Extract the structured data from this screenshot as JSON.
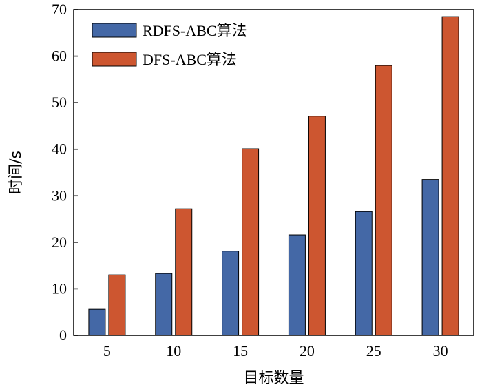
{
  "chart_data": {
    "type": "bar",
    "categories": [
      "5",
      "10",
      "15",
      "20",
      "25",
      "30"
    ],
    "series": [
      {
        "name": "RDFS-ABC算法",
        "color": "#4468a6",
        "values": [
          5.6,
          13.3,
          18.1,
          21.6,
          26.6,
          33.5
        ]
      },
      {
        "name": "DFS-ABC算法",
        "color": "#cd5630",
        "values": [
          13.0,
          27.2,
          40.1,
          47.1,
          58.0,
          68.5
        ]
      }
    ],
    "xlabel": "目标数量",
    "ylabel": "时间/s",
    "ylim": [
      0,
      70
    ],
    "yticks": [
      "0",
      "10",
      "20",
      "30",
      "40",
      "50",
      "60",
      "70"
    ],
    "grid": false,
    "legend": "top-left"
  }
}
